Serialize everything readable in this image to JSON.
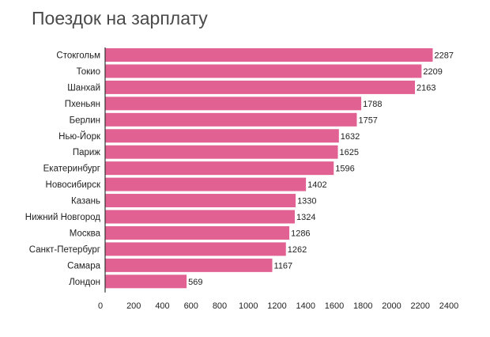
{
  "chart_data": {
    "type": "bar",
    "orientation": "horizontal",
    "title": "Поездок на зарплату",
    "categories": [
      "Стокгольм",
      "Токио",
      "Шанхай",
      "Пхеньян",
      "Берлин",
      "Нью-Йорк",
      "Париж",
      "Екатеринбург",
      "Новосибирск",
      "Казань",
      "Нижний Новгород",
      "Москва",
      "Санкт-Петербург",
      "Самара",
      "Лондон"
    ],
    "values": [
      2287,
      2209,
      2163,
      1788,
      1757,
      1632,
      1625,
      1596,
      1402,
      1330,
      1324,
      1286,
      1262,
      1167,
      569
    ],
    "xticks": [
      0,
      200,
      400,
      600,
      800,
      1000,
      1200,
      1400,
      1600,
      1800,
      2000,
      2200,
      2400
    ],
    "xlim": [
      0,
      2400
    ],
    "bar_color": "#e06192",
    "data_labels": true,
    "grid": false,
    "legend": "none"
  }
}
